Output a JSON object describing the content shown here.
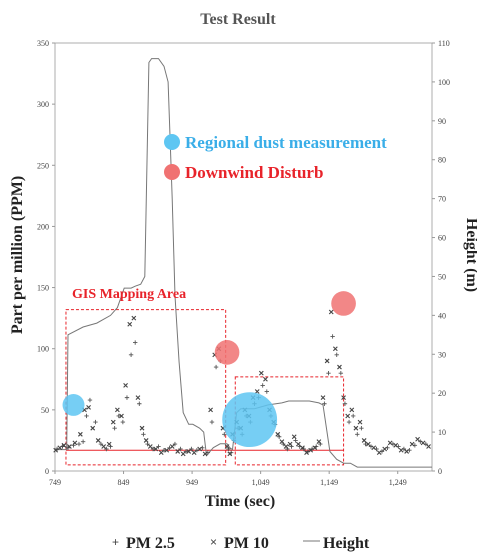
{
  "chart_data": {
    "type": "scatter",
    "title": "Test Result",
    "xlabel": "Time (sec)",
    "ylabel": "Part per million (PPM)",
    "y2label": "Height (m)",
    "xlim": [
      749,
      1299
    ],
    "ylim": [
      0,
      350
    ],
    "y2lim": [
      0,
      110
    ],
    "x_ticks": [
      749,
      849,
      949,
      1049,
      1149,
      1249
    ],
    "x_tick_labels": [
      "749",
      "849",
      "949",
      "1,049",
      "1,149",
      "1,249"
    ],
    "y_ticks": [
      0,
      50,
      100,
      150,
      200,
      250,
      300,
      350
    ],
    "y2_ticks": [
      0,
      10,
      20,
      30,
      40,
      50,
      60,
      70,
      80,
      90,
      100,
      110
    ],
    "grid": false,
    "legend_position": "bottom",
    "baseline_ppm": 17,
    "series": [
      {
        "name": "PM 2.5",
        "marker": "+",
        "color": "#555555",
        "x": [
          752,
          760,
          768,
          776,
          784,
          790,
          795,
          800,
          808,
          816,
          824,
          830,
          836,
          842,
          848,
          854,
          860,
          866,
          872,
          878,
          884,
          892,
          900,
          908,
          916,
          924,
          932,
          940,
          948,
          956,
          964,
          972,
          978,
          984,
          990,
          996,
          1002,
          1006,
          1010,
          1016,
          1022,
          1028,
          1034,
          1040,
          1046,
          1052,
          1058,
          1064,
          1070,
          1076,
          1082,
          1088,
          1094,
          1100,
          1106,
          1112,
          1118,
          1124,
          1130,
          1136,
          1142,
          1148,
          1154,
          1160,
          1166,
          1172,
          1178,
          1184,
          1190,
          1196,
          1202,
          1210,
          1218,
          1226,
          1234,
          1242,
          1250,
          1258,
          1266,
          1274,
          1282,
          1290
        ],
        "y": [
          18,
          20,
          19,
          21,
          22,
          24,
          45,
          58,
          40,
          22,
          18,
          20,
          35,
          45,
          40,
          60,
          95,
          105,
          55,
          30,
          22,
          18,
          20,
          17,
          19,
          22,
          18,
          16,
          18,
          17,
          19,
          15,
          40,
          85,
          90,
          30,
          18,
          15,
          25,
          35,
          30,
          45,
          40,
          55,
          60,
          70,
          65,
          45,
          38,
          28,
          22,
          18,
          20,
          25,
          20,
          18,
          16,
          18,
          20,
          22,
          55,
          80,
          110,
          95,
          80,
          55,
          40,
          45,
          30,
          35,
          22,
          20,
          18,
          16,
          19,
          22,
          20,
          18,
          17,
          21,
          24,
          22
        ]
      },
      {
        "name": "PM 10",
        "marker": "x",
        "color": "#555555",
        "x": [
          750,
          756,
          762,
          770,
          778,
          786,
          792,
          798,
          804,
          812,
          820,
          828,
          834,
          840,
          846,
          852,
          858,
          864,
          870,
          876,
          882,
          888,
          896,
          904,
          912,
          920,
          928,
          936,
          944,
          952,
          960,
          968,
          976,
          982,
          988,
          994,
          1000,
          1004,
          1008,
          1014,
          1020,
          1026,
          1032,
          1038,
          1044,
          1050,
          1056,
          1062,
          1068,
          1074,
          1080,
          1086,
          1092,
          1098,
          1104,
          1110,
          1116,
          1122,
          1128,
          1134,
          1140,
          1146,
          1152,
          1158,
          1164,
          1170,
          1176,
          1182,
          1188,
          1194,
          1200,
          1206,
          1214,
          1222,
          1230,
          1238,
          1246,
          1254,
          1262,
          1270,
          1278,
          1286,
          1294
        ],
        "y": [
          17,
          19,
          21,
          20,
          23,
          30,
          50,
          52,
          35,
          25,
          20,
          22,
          40,
          50,
          45,
          70,
          120,
          125,
          60,
          35,
          25,
          20,
          18,
          15,
          17,
          20,
          16,
          14,
          16,
          15,
          18,
          14,
          50,
          95,
          100,
          35,
          20,
          14,
          30,
          40,
          35,
          50,
          45,
          60,
          65,
          80,
          75,
          50,
          40,
          30,
          24,
          20,
          22,
          28,
          22,
          19,
          15,
          17,
          19,
          24,
          60,
          90,
          130,
          100,
          85,
          60,
          45,
          50,
          35,
          40,
          25,
          22,
          19,
          15,
          18,
          23,
          21,
          17,
          16,
          22,
          26,
          23,
          20
        ]
      },
      {
        "name": "Height",
        "type": "line",
        "axis": "right",
        "color": "#777777",
        "x": [
          749,
          766,
          768,
          790,
          810,
          830,
          840,
          846,
          850,
          860,
          866,
          874,
          880,
          886,
          890,
          900,
          908,
          914,
          920,
          924,
          930,
          936,
          944,
          950,
          960,
          966,
          970,
          980,
          990,
          1000,
          1004,
          1008,
          1014,
          1020,
          1040,
          1060,
          1080,
          1090,
          1100,
          1120,
          1134,
          1140,
          1150,
          1160,
          1170,
          1180,
          1190,
          1200,
          1299
        ],
        "y": [
          5.5,
          5.5,
          35,
          37,
          38,
          40,
          42,
          45,
          47,
          47,
          47.5,
          48,
          50,
          105,
          106,
          106,
          104,
          100,
          70,
          45,
          28,
          15,
          12,
          12,
          11,
          10,
          4,
          6,
          7,
          7,
          6,
          5.5,
          15,
          16,
          16,
          17,
          17.5,
          18,
          18,
          18,
          17.5,
          17,
          5,
          3,
          2,
          2,
          1,
          1,
          1
        ]
      }
    ],
    "annotations": {
      "legend_blue": "Regional dust measurement",
      "legend_red": "Downwind Disturb",
      "gis_label": "GIS Mapping Area",
      "blue_circles": [
        {
          "x": 776,
          "y": 54,
          "r": 8
        },
        {
          "x": 1033,
          "y": 42,
          "r": 20
        }
      ],
      "red_circles": [
        {
          "x": 1000,
          "y": 97,
          "r": 9
        },
        {
          "x": 1170,
          "y": 137,
          "r": 9
        }
      ],
      "gis_boxes": [
        {
          "x": [
            765,
            998
          ],
          "y": [
            5,
            132
          ]
        },
        {
          "x": [
            1012,
            1170
          ],
          "y": [
            5,
            77
          ]
        }
      ]
    }
  }
}
